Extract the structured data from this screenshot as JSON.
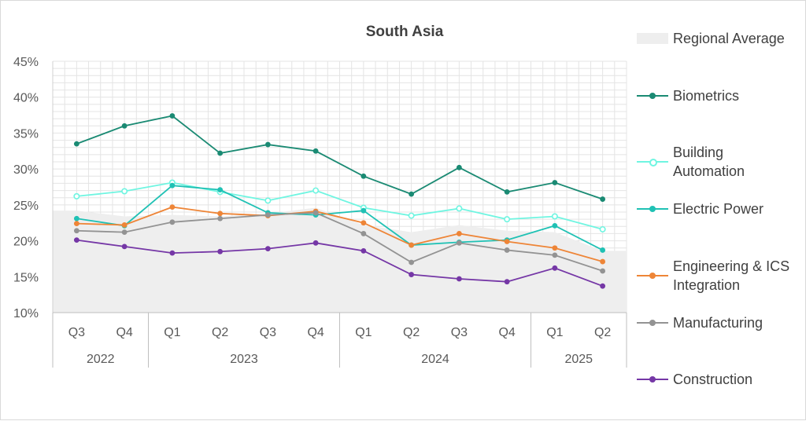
{
  "chart_data": {
    "type": "line",
    "title": "South Asia",
    "categories": [
      "Q3",
      "Q4",
      "Q1",
      "Q2",
      "Q3",
      "Q4",
      "Q1",
      "Q2",
      "Q3",
      "Q4",
      "Q1",
      "Q2"
    ],
    "years": [
      {
        "label": "2022",
        "span": 2
      },
      {
        "label": "2023",
        "span": 4
      },
      {
        "label": "2024",
        "span": 4
      },
      {
        "label": "2025",
        "span": 2
      }
    ],
    "y_ticks": [
      "10%",
      "15%",
      "20%",
      "25%",
      "30%",
      "35%",
      "40%",
      "45%"
    ],
    "ylim": [
      10,
      45
    ],
    "y_unit": "%",
    "grid": true,
    "legend_position": "right",
    "area": {
      "name": "Regional Average",
      "color": "#eeeeee",
      "values": [
        24.2,
        23.4,
        23.6,
        23.4,
        23.8,
        24.6,
        22.2,
        21.2,
        22.2,
        21.4,
        21.2,
        18.6
      ]
    },
    "series": [
      {
        "name": "Biometrics",
        "color": "#1a8a73",
        "marker": "filled",
        "values": [
          33.5,
          36.0,
          37.4,
          32.2,
          33.4,
          32.5,
          29.0,
          26.5,
          30.2,
          26.8,
          28.1,
          25.8
        ]
      },
      {
        "name": "Building Automation",
        "color": "#6ff5e1",
        "marker": "hollow",
        "values": [
          26.2,
          26.9,
          28.1,
          26.8,
          25.6,
          27.0,
          24.6,
          23.5,
          24.5,
          23.0,
          23.4,
          21.6
        ]
      },
      {
        "name": "Electric Power",
        "color": "#1fc1b4",
        "marker": "filled",
        "values": [
          23.1,
          22.1,
          27.7,
          27.1,
          23.9,
          23.6,
          24.2,
          19.4,
          19.8,
          20.1,
          22.1,
          18.7
        ]
      },
      {
        "name": "Engineering & ICS Integration",
        "color": "#ee8537",
        "marker": "filled",
        "values": [
          22.4,
          22.2,
          24.7,
          23.8,
          23.5,
          24.1,
          22.5,
          19.4,
          21.0,
          19.9,
          19.0,
          17.1
        ]
      },
      {
        "name": "Manufacturing",
        "color": "#939393",
        "marker": "filled",
        "values": [
          21.4,
          21.2,
          22.6,
          23.1,
          23.6,
          23.9,
          21.0,
          17.0,
          19.7,
          18.7,
          18.0,
          15.8
        ]
      },
      {
        "name": "Construction",
        "color": "#7537a6",
        "marker": "filled",
        "values": [
          20.1,
          19.2,
          18.3,
          18.5,
          18.9,
          19.7,
          18.6,
          15.3,
          14.7,
          14.3,
          16.2,
          13.7
        ]
      }
    ]
  },
  "legend": {
    "area_label": "Regional Average",
    "items": [
      {
        "label": "Biometrics",
        "color": "#1a8a73",
        "marker": "filled"
      },
      {
        "label": "Building Automation",
        "color": "#6ff5e1",
        "marker": "hollow"
      },
      {
        "label": "Electric Power",
        "color": "#1fc1b4",
        "marker": "filled"
      },
      {
        "label": "Engineering & ICS Integration",
        "color": "#ee8537",
        "marker": "filled"
      },
      {
        "label": "Manufacturing",
        "color": "#939393",
        "marker": "filled"
      },
      {
        "label": "Construction",
        "color": "#7537a6",
        "marker": "filled"
      }
    ]
  }
}
